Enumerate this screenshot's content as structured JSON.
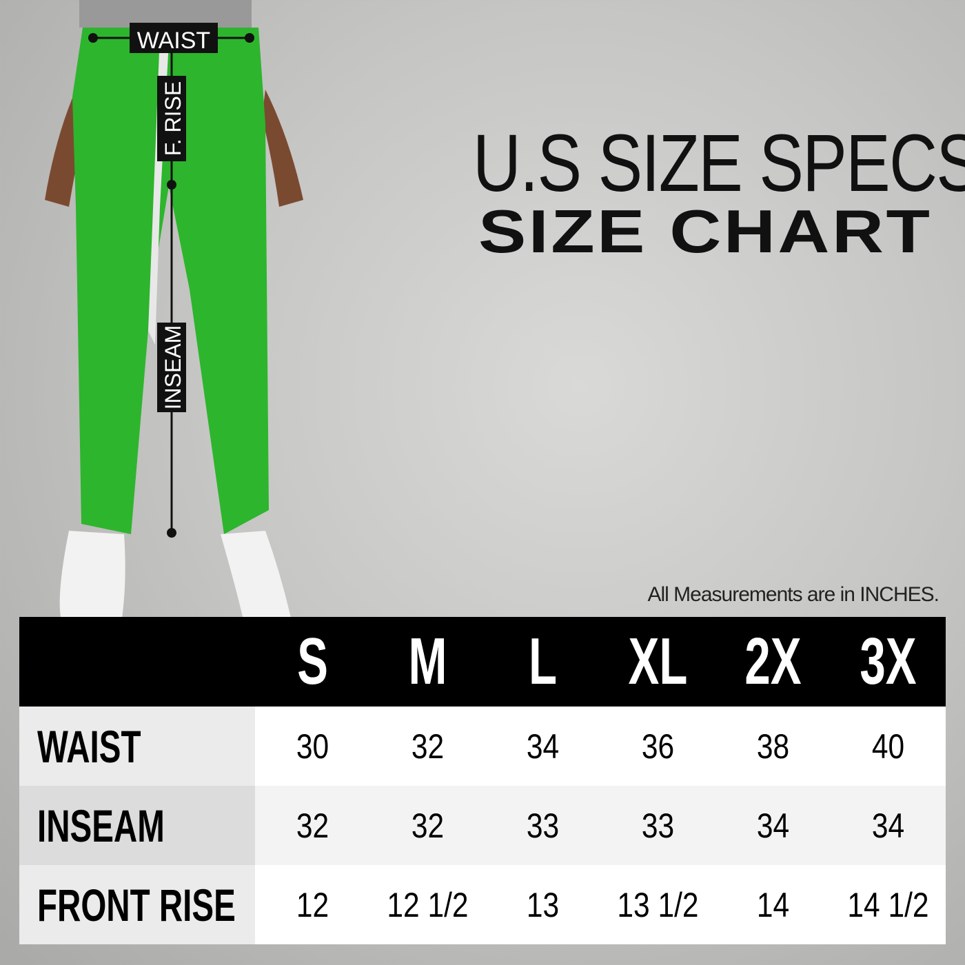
{
  "figure": {
    "labels": {
      "waist": "WAIST",
      "front_rise": "F. RISE",
      "inseam": "INSEAM"
    },
    "pants_color": "#2db52d"
  },
  "title": {
    "line1": "U.S SIZE SPECS",
    "line2": "SIZE CHART"
  },
  "note": "All Measurements are in INCHES.",
  "table": {
    "sizes": [
      "S",
      "M",
      "L",
      "XL",
      "2X",
      "3X"
    ],
    "rows": [
      {
        "label": "WAIST",
        "values": [
          "30",
          "32",
          "34",
          "36",
          "38",
          "40"
        ]
      },
      {
        "label": "INSEAM",
        "values": [
          "32",
          "32",
          "33",
          "33",
          "34",
          "34"
        ]
      },
      {
        "label": "FRONT RISE",
        "values": [
          "12",
          "12 1/2",
          "13",
          "13 1/2",
          "14",
          "14 1/2"
        ]
      }
    ]
  }
}
